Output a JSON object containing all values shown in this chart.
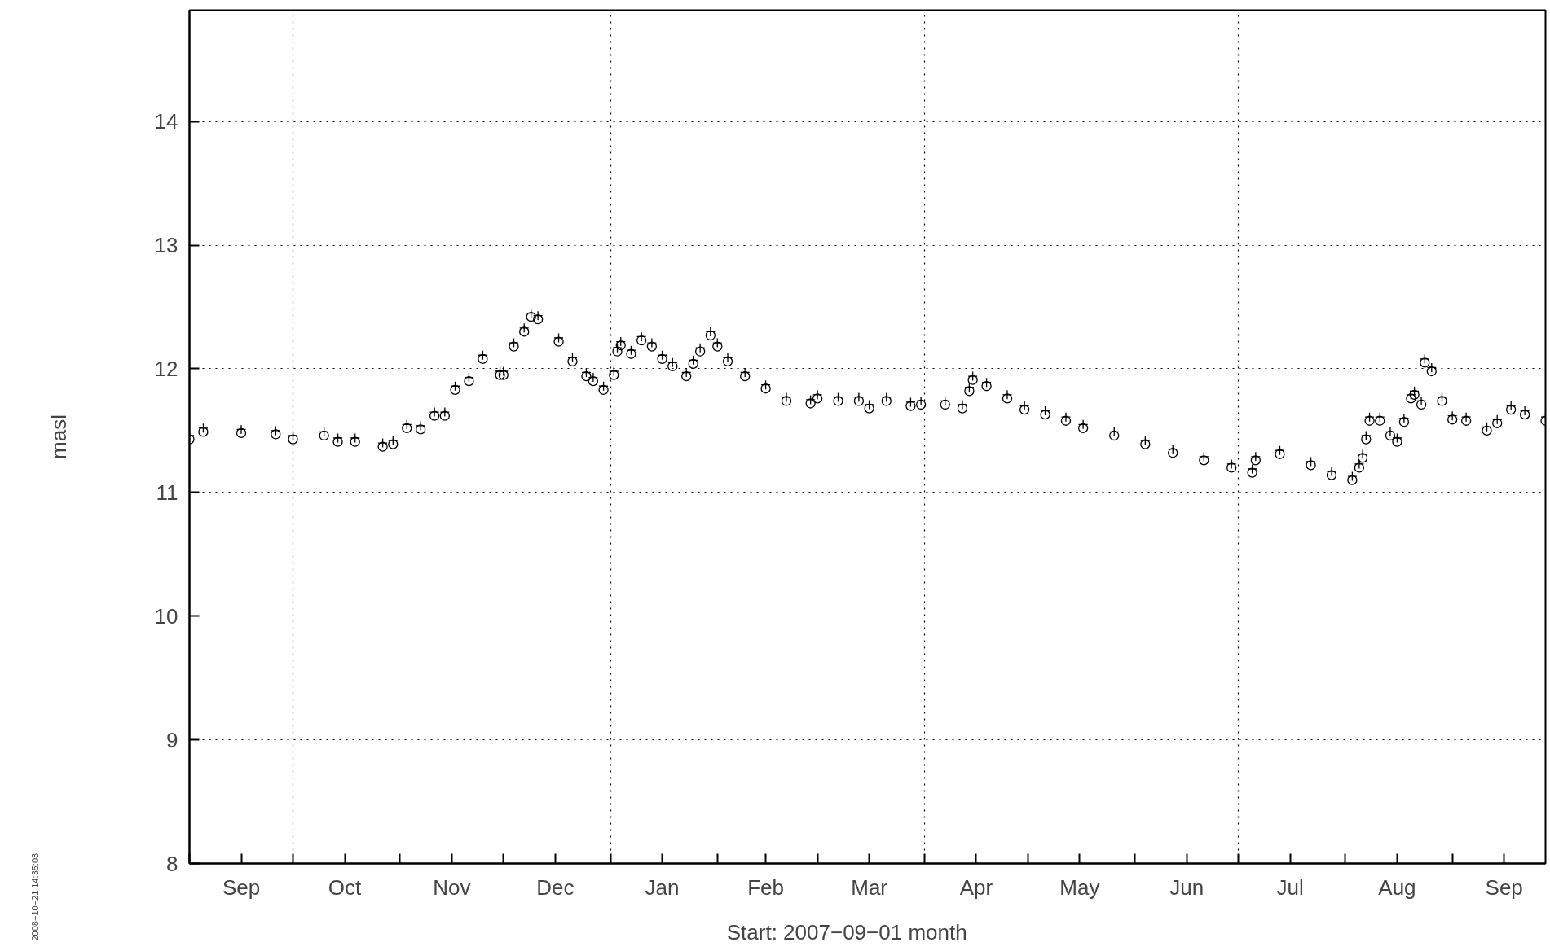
{
  "chart_data": {
    "type": "scatter",
    "xlabel": "Start: 2007−09−01        month",
    "ylabel": "masl",
    "annotations": [
      "2008−10−21 14:35:08"
    ],
    "x": [
      "2007-09-01",
      "2007-09-05",
      "2007-09-16",
      "2007-09-26",
      "2007-10-01",
      "2007-10-10",
      "2007-10-14",
      "2007-10-19",
      "2007-10-27",
      "2007-10-30",
      "2007-11-03",
      "2007-11-07",
      "2007-11-11",
      "2007-11-14",
      "2007-11-17",
      "2007-11-21",
      "2007-11-25",
      "2007-11-30",
      "2007-12-01",
      "2007-12-04",
      "2007-12-07",
      "2007-12-09",
      "2007-12-11",
      "2007-12-17",
      "2007-12-21",
      "2007-12-25",
      "2007-12-27",
      "2007-12-30",
      "2008-01-01",
      "2008-01-02",
      "2008-01-03",
      "2008-01-04",
      "2008-01-07",
      "2008-01-10",
      "2008-01-13",
      "2008-01-16",
      "2008-01-19",
      "2008-01-23",
      "2008-01-25",
      "2008-01-27",
      "2008-01-30",
      "2008-02-01",
      "2008-02-04",
      "2008-02-09",
      "2008-02-15",
      "2008-02-21",
      "2008-02-28",
      "2008-03-01",
      "2008-03-07",
      "2008-03-13",
      "2008-03-16",
      "2008-03-21",
      "2008-03-28",
      "2008-03-31",
      "2008-04-07",
      "2008-04-12",
      "2008-04-13",
      "2008-04-14",
      "2008-04-15",
      "2008-04-19",
      "2008-04-25",
      "2008-04-30",
      "2008-05-06",
      "2008-05-12",
      "2008-05-17",
      "2008-05-26",
      "2008-06-04",
      "2008-06-12",
      "2008-06-21",
      "2008-06-29",
      "2008-07-05",
      "2008-07-06",
      "2008-07-13",
      "2008-07-22",
      "2008-07-28",
      "2008-08-03",
      "2008-08-05",
      "2008-08-06",
      "2008-08-07",
      "2008-08-08",
      "2008-08-11",
      "2008-08-14",
      "2008-08-16",
      "2008-08-17",
      "2008-08-18",
      "2008-08-20",
      "2008-08-21",
      "2008-08-23",
      "2008-08-24",
      "2008-08-26",
      "2008-08-29",
      "2008-09-01",
      "2008-09-05",
      "2008-09-11",
      "2008-09-14",
      "2008-09-18",
      "2008-09-22",
      "2008-09-28"
    ],
    "series": [
      {
        "color": "#000000",
        "marker": "circle",
        "values": [
          11.43,
          11.49,
          11.48,
          11.47,
          11.43,
          11.46,
          11.41,
          11.41,
          11.37,
          11.39,
          11.52,
          11.51,
          11.62,
          11.62,
          11.83,
          11.9,
          12.08,
          11.95,
          11.95,
          12.18,
          12.3,
          12.42,
          12.4,
          12.22,
          12.06,
          11.94,
          11.9,
          11.83,
          null,
          11.95,
          12.14,
          12.19,
          12.12,
          12.23,
          12.18,
          12.08,
          12.02,
          11.94,
          12.04,
          12.14,
          12.27,
          12.18,
          12.06,
          11.94,
          11.84,
          11.74,
          11.72,
          11.76,
          11.74,
          11.74,
          11.68,
          11.74,
          11.7,
          11.71,
          11.71,
          11.68,
          null,
          11.82,
          11.91,
          11.86,
          11.76,
          11.67,
          11.63,
          11.58,
          11.52,
          11.46,
          11.39,
          11.32,
          11.26,
          11.2,
          11.16,
          11.26,
          11.31,
          11.22,
          11.14,
          11.1,
          11.2,
          11.28,
          11.43,
          11.58,
          11.58,
          11.46,
          11.41,
          null,
          11.57,
          11.76,
          11.79,
          11.71,
          12.05,
          11.98,
          11.74,
          11.59,
          11.58,
          11.5,
          11.56,
          11.67,
          11.63,
          11.58
        ]
      },
      {
        "color": "#000000",
        "marker": "cross",
        "values": [
          11.46,
          11.52,
          11.51,
          11.5,
          11.46,
          11.49,
          11.44,
          11.44,
          11.4,
          11.42,
          11.55,
          11.54,
          11.65,
          11.65,
          11.86,
          11.93,
          12.11,
          11.98,
          11.98,
          12.21,
          12.33,
          12.45,
          12.43,
          12.25,
          12.09,
          11.97,
          11.93,
          11.86,
          null,
          11.98,
          12.17,
          12.22,
          12.15,
          12.26,
          12.21,
          12.11,
          12.05,
          11.97,
          12.07,
          12.17,
          12.3,
          12.21,
          12.09,
          11.97,
          11.87,
          11.77,
          11.75,
          11.79,
          11.77,
          11.77,
          11.71,
          11.77,
          11.73,
          11.74,
          11.74,
          11.71,
          null,
          11.85,
          11.94,
          11.89,
          11.79,
          11.7,
          11.66,
          11.61,
          11.55,
          11.49,
          11.42,
          11.35,
          11.29,
          11.23,
          11.19,
          11.29,
          11.34,
          11.25,
          11.17,
          11.13,
          11.23,
          11.31,
          11.46,
          11.61,
          11.61,
          11.49,
          11.44,
          null,
          11.6,
          11.79,
          11.82,
          11.74,
          12.08,
          12.01,
          11.77,
          11.62,
          11.61,
          11.53,
          11.59,
          11.7,
          11.66,
          11.61
        ]
      }
    ],
    "xlim": [
      "2007-09-01",
      "2008-09-28"
    ],
    "xticks": [
      {
        "value": "2007-09-01",
        "label": null
      },
      {
        "value": "2007-09-16",
        "label": "Sep"
      },
      {
        "value": "2007-10-01",
        "label": null
      },
      {
        "value": "2007-10-16",
        "label": "Oct"
      },
      {
        "value": "2007-11-01",
        "label": null
      },
      {
        "value": "2007-11-16",
        "label": "Nov"
      },
      {
        "value": "2007-12-01",
        "label": null
      },
      {
        "value": "2007-12-16",
        "label": "Dec"
      },
      {
        "value": "2008-01-01",
        "label": null
      },
      {
        "value": "2008-01-16",
        "label": "Jan"
      },
      {
        "value": "2008-02-01",
        "label": null
      },
      {
        "value": "2008-02-15",
        "label": "Feb"
      },
      {
        "value": "2008-03-01",
        "label": null
      },
      {
        "value": "2008-03-16",
        "label": "Mar"
      },
      {
        "value": "2008-04-01",
        "label": null
      },
      {
        "value": "2008-04-16",
        "label": "Apr"
      },
      {
        "value": "2008-05-01",
        "label": null
      },
      {
        "value": "2008-05-16",
        "label": "May"
      },
      {
        "value": "2008-06-01",
        "label": null
      },
      {
        "value": "2008-06-16",
        "label": "Jun"
      },
      {
        "value": "2008-07-01",
        "label": null
      },
      {
        "value": "2008-07-16",
        "label": "Jul"
      },
      {
        "value": "2008-08-01",
        "label": null
      },
      {
        "value": "2008-08-16",
        "label": "Aug"
      },
      {
        "value": "2008-09-01",
        "label": null
      },
      {
        "value": "2008-09-16",
        "label": "Sep"
      }
    ],
    "ylim": [
      8,
      14.9
    ],
    "yticks": [
      8,
      9,
      10,
      11,
      12,
      13,
      14
    ],
    "grid": true
  }
}
